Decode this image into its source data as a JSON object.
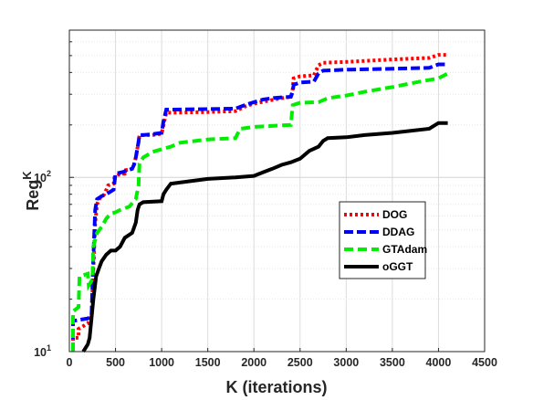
{
  "chart_data": {
    "type": "line",
    "title": "",
    "xlabel": "K (iterations)",
    "ylabel": "Reg",
    "ylabel_superscript": "K",
    "xlim": [
      0,
      4500
    ],
    "ylim": [
      10,
      700
    ],
    "yscale": "log",
    "grid": true,
    "legend_position": "right-middle",
    "x_ticks": [
      0,
      500,
      1000,
      1500,
      2000,
      2500,
      3000,
      3500,
      4000,
      4500
    ],
    "y_ticks": [
      {
        "value": 10,
        "base": "10",
        "exp": "1"
      },
      {
        "value": 100,
        "base": "10",
        "exp": "2"
      }
    ],
    "series": [
      {
        "name": "DOG",
        "color": "#ff0000",
        "dash": "3,3",
        "points": [
          [
            40,
            10
          ],
          [
            40,
            12
          ],
          [
            100,
            12
          ],
          [
            100,
            13.5
          ],
          [
            200,
            14.5
          ],
          [
            240,
            16
          ],
          [
            260,
            30
          ],
          [
            280,
            55
          ],
          [
            300,
            70
          ],
          [
            320,
            75
          ],
          [
            380,
            80
          ],
          [
            420,
            90
          ],
          [
            480,
            92
          ],
          [
            490,
            100
          ],
          [
            550,
            105
          ],
          [
            600,
            105
          ],
          [
            610,
            110
          ],
          [
            680,
            112
          ],
          [
            700,
            118
          ],
          [
            720,
            130
          ],
          [
            750,
            160
          ],
          [
            760,
            175
          ],
          [
            800,
            175
          ],
          [
            900,
            175
          ],
          [
            1000,
            178
          ],
          [
            1020,
            200
          ],
          [
            1050,
            235
          ],
          [
            1100,
            235
          ],
          [
            1500,
            237
          ],
          [
            1800,
            240
          ],
          [
            1900,
            255
          ],
          [
            2000,
            265
          ],
          [
            2150,
            275
          ],
          [
            2300,
            285
          ],
          [
            2400,
            290
          ],
          [
            2420,
            320
          ],
          [
            2430,
            370
          ],
          [
            2500,
            380
          ],
          [
            2650,
            385
          ],
          [
            2700,
            440
          ],
          [
            2750,
            455
          ],
          [
            3000,
            460
          ],
          [
            3500,
            475
          ],
          [
            3900,
            485
          ],
          [
            4000,
            505
          ],
          [
            4100,
            505
          ]
        ]
      },
      {
        "name": "DDAG",
        "color": "#0000ff",
        "dash": "10,4",
        "points": [
          [
            40,
            10
          ],
          [
            40,
            15
          ],
          [
            200,
            15.5
          ],
          [
            240,
            16
          ],
          [
            260,
            35
          ],
          [
            280,
            65
          ],
          [
            300,
            75
          ],
          [
            350,
            78
          ],
          [
            400,
            80
          ],
          [
            480,
            85
          ],
          [
            500,
            105
          ],
          [
            600,
            108
          ],
          [
            680,
            112
          ],
          [
            700,
            118
          ],
          [
            720,
            130
          ],
          [
            750,
            160
          ],
          [
            760,
            175
          ],
          [
            800,
            175
          ],
          [
            900,
            177
          ],
          [
            1000,
            180
          ],
          [
            1020,
            210
          ],
          [
            1050,
            245
          ],
          [
            1100,
            245
          ],
          [
            1800,
            248
          ],
          [
            1900,
            260
          ],
          [
            2000,
            270
          ],
          [
            2100,
            280
          ],
          [
            2200,
            285
          ],
          [
            2300,
            288
          ],
          [
            2400,
            290
          ],
          [
            2420,
            310
          ],
          [
            2430,
            340
          ],
          [
            2500,
            350
          ],
          [
            2650,
            355
          ],
          [
            2700,
            395
          ],
          [
            2750,
            410
          ],
          [
            3000,
            415
          ],
          [
            3500,
            420
          ],
          [
            3900,
            425
          ],
          [
            4000,
            445
          ],
          [
            4100,
            445
          ]
        ]
      },
      {
        "name": "GTAdam",
        "color": "#00ee00",
        "dash": "10,5",
        "points": [
          [
            40,
            10
          ],
          [
            40,
            17
          ],
          [
            100,
            18
          ],
          [
            110,
            27
          ],
          [
            200,
            28
          ],
          [
            210,
            24
          ],
          [
            250,
            26
          ],
          [
            260,
            40
          ],
          [
            300,
            48
          ],
          [
            350,
            52
          ],
          [
            400,
            58
          ],
          [
            450,
            62
          ],
          [
            500,
            63
          ],
          [
            550,
            65
          ],
          [
            650,
            68
          ],
          [
            720,
            75
          ],
          [
            750,
            90
          ],
          [
            760,
            120
          ],
          [
            800,
            130
          ],
          [
            900,
            140
          ],
          [
            1000,
            145
          ],
          [
            1100,
            150
          ],
          [
            1200,
            158
          ],
          [
            1500,
            165
          ],
          [
            1800,
            168
          ],
          [
            1850,
            190
          ],
          [
            2000,
            195
          ],
          [
            2400,
            200
          ],
          [
            2420,
            260
          ],
          [
            2500,
            268
          ],
          [
            2700,
            270
          ],
          [
            2800,
            285
          ],
          [
            3000,
            295
          ],
          [
            3200,
            310
          ],
          [
            3500,
            330
          ],
          [
            3800,
            355
          ],
          [
            4000,
            370
          ],
          [
            4100,
            395
          ]
        ]
      },
      {
        "name": "oGGT",
        "color": "#000000",
        "dash": "",
        "points": [
          [
            150,
            10
          ],
          [
            200,
            11
          ],
          [
            220,
            12
          ],
          [
            260,
            20
          ],
          [
            290,
            27
          ],
          [
            320,
            30
          ],
          [
            350,
            33
          ],
          [
            400,
            36
          ],
          [
            450,
            38
          ],
          [
            500,
            38
          ],
          [
            550,
            40
          ],
          [
            600,
            45
          ],
          [
            680,
            48
          ],
          [
            720,
            55
          ],
          [
            740,
            65
          ],
          [
            760,
            70
          ],
          [
            800,
            72
          ],
          [
            1000,
            73
          ],
          [
            1020,
            80
          ],
          [
            1050,
            85
          ],
          [
            1100,
            92
          ],
          [
            1300,
            95
          ],
          [
            1500,
            98
          ],
          [
            1800,
            100
          ],
          [
            2000,
            102
          ],
          [
            2100,
            107
          ],
          [
            2200,
            112
          ],
          [
            2300,
            118
          ],
          [
            2400,
            122
          ],
          [
            2500,
            128
          ],
          [
            2600,
            142
          ],
          [
            2700,
            150
          ],
          [
            2750,
            162
          ],
          [
            2800,
            168
          ],
          [
            3000,
            170
          ],
          [
            3200,
            175
          ],
          [
            3500,
            180
          ],
          [
            3900,
            190
          ],
          [
            4000,
            205
          ],
          [
            4100,
            205
          ]
        ]
      }
    ]
  }
}
